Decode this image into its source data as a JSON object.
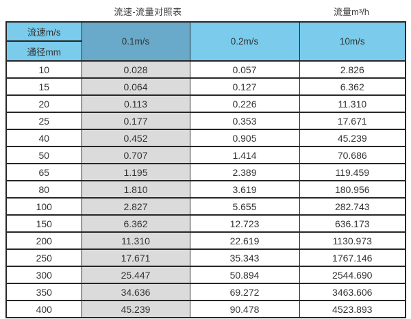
{
  "titles": {
    "main": "流速-流量对照表",
    "right": "流量m³/h"
  },
  "header": {
    "corner_top": "流速m/s",
    "corner_bottom": "通径mm",
    "columns": [
      "0.1m/s",
      "0.2m/s",
      "10m/s"
    ]
  },
  "rows": [
    [
      "10",
      "0.028",
      "0.057",
      "2.826"
    ],
    [
      "15",
      "0.064",
      "0.127",
      "6.362"
    ],
    [
      "20",
      "0.113",
      "0.226",
      "11.310"
    ],
    [
      "25",
      "0.177",
      "0.353",
      "17.671"
    ],
    [
      "40",
      "0.452",
      "0.905",
      "45.239"
    ],
    [
      "50",
      "0.707",
      "1.414",
      "70.686"
    ],
    [
      "65",
      "1.195",
      "2.389",
      "119.459"
    ],
    [
      "80",
      "1.810",
      "3.619",
      "180.956"
    ],
    [
      "100",
      "2.827",
      "5.655",
      "282.743"
    ],
    [
      "150",
      "6.362",
      "12.723",
      "636.173"
    ],
    [
      "200",
      "11.310",
      "22.619",
      "1130.973"
    ],
    [
      "250",
      "17.671",
      "35.343",
      "1767.146"
    ],
    [
      "300",
      "25.447",
      "50.894",
      "2544.690"
    ],
    [
      "350",
      "34.636",
      "69.272",
      "3463.606"
    ],
    [
      "400",
      "45.239",
      "90.478",
      "4523.893"
    ]
  ],
  "colors": {
    "header_blue": "#7acbec",
    "header_blue_dark": "#69a9ca",
    "column_gray": "#dbdbdb",
    "border": "#262626",
    "text": "#333333"
  },
  "chart_data": {
    "type": "table",
    "title": "流速-流量对照表",
    "right_unit_label": "流量m³/h",
    "row_axis_label_top": "流速m/s",
    "row_axis_label_bottom": "通径mm",
    "categories": [
      10,
      15,
      20,
      25,
      40,
      50,
      65,
      80,
      100,
      150,
      200,
      250,
      300,
      350,
      400
    ],
    "categories_unit": "mm",
    "value_unit": "m³/h",
    "series": [
      {
        "name": "0.1m/s",
        "values": [
          0.028,
          0.064,
          0.113,
          0.177,
          0.452,
          0.707,
          1.195,
          1.81,
          2.827,
          6.362,
          11.31,
          17.671,
          25.447,
          34.636,
          45.239
        ]
      },
      {
        "name": "0.2m/s",
        "values": [
          0.057,
          0.127,
          0.226,
          0.353,
          0.905,
          1.414,
          2.389,
          3.619,
          5.655,
          12.723,
          22.619,
          35.343,
          50.894,
          69.272,
          90.478
        ]
      },
      {
        "name": "10m/s",
        "values": [
          2.826,
          6.362,
          11.31,
          17.671,
          45.239,
          70.686,
          119.459,
          180.956,
          282.743,
          636.173,
          1130.973,
          1767.146,
          2544.69,
          3463.606,
          4523.893
        ]
      }
    ]
  }
}
